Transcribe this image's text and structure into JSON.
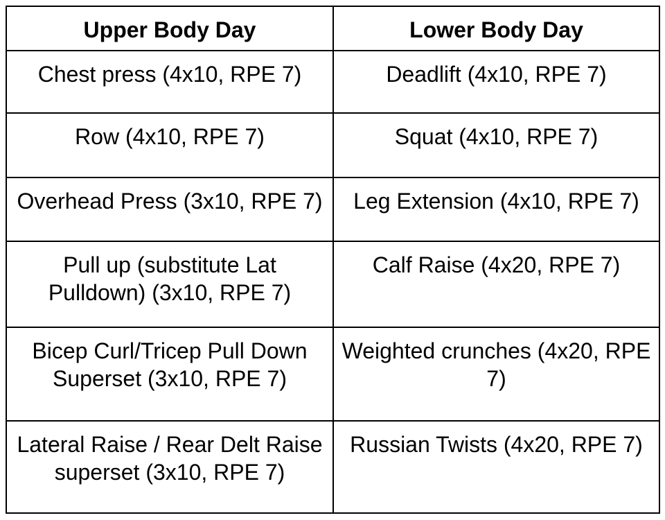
{
  "table": {
    "headers": [
      {
        "label": "Upper Body Day"
      },
      {
        "label": "Lower Body Day"
      }
    ],
    "rows": [
      {
        "upper": "Chest press (4x10, RPE 7)",
        "lower": "Deadlift (4x10, RPE 7)"
      },
      {
        "upper": "Row (4x10, RPE 7)",
        "lower": "Squat (4x10, RPE 7)"
      },
      {
        "upper": "Overhead Press (3x10, RPE 7)",
        "lower": "Leg Extension (4x10, RPE 7)"
      },
      {
        "upper": "Pull up (substitute Lat Pulldown) (3x10, RPE 7)",
        "lower": "Calf Raise (4x20, RPE 7)"
      },
      {
        "upper": "Bicep Curl/Tricep Pull Down Superset (3x10, RPE 7)",
        "lower": "Weighted crunches (4x20, RPE 7)"
      },
      {
        "upper": "Lateral Raise / Rear Delt Raise superset (3x10, RPE 7)",
        "lower": "Russian Twists (4x20, RPE 7)"
      }
    ]
  },
  "colors": {
    "border": "#000000",
    "text": "#000000",
    "background": "#ffffff"
  }
}
